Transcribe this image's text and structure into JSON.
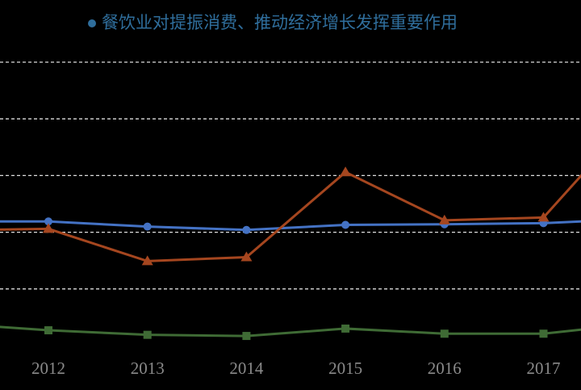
{
  "chart_data": {
    "type": "line",
    "title": "餐饮业对提振消费、推动经济增长发挥重要作用",
    "categories": [
      null,
      "2012",
      "2013",
      "2014",
      "2015",
      "2016",
      "2017",
      null
    ],
    "series": [
      {
        "color": "#4472c4",
        "marker": "circle",
        "values": [
          21.9,
          21.9,
          21.0,
          20.4,
          21.3,
          21.4,
          21.6,
          22.4
        ]
      },
      {
        "color": "#a5461f",
        "marker": "triangle",
        "values": [
          20.3,
          20.6,
          14.9,
          15.6,
          30.6,
          22.1,
          22.6,
          42
        ]
      },
      {
        "color": "#3f6b35",
        "marker": "square",
        "values": [
          3.9,
          2.7,
          1.9,
          1.7,
          3.0,
          2.1,
          2.1,
          4.0
        ]
      }
    ],
    "ylim": [
      0,
      50
    ],
    "yticks": [
      10,
      20,
      30,
      40,
      50
    ],
    "grid": true
  }
}
